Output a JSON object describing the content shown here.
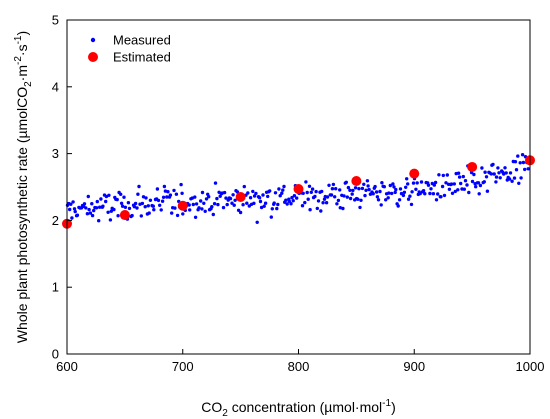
{
  "chart_data": {
    "type": "scatter",
    "xlim": [
      600,
      1000
    ],
    "ylim": [
      0,
      5
    ],
    "x_ticks": [
      "600",
      "700",
      "800",
      "900",
      "1000"
    ],
    "y_ticks": [
      "0",
      "1",
      "2",
      "3",
      "4",
      "5"
    ],
    "xlabel": {
      "prefix": "CO",
      "sub": "2",
      "middle": " concentration (µmol·mol",
      "sup": "-1",
      "suffix": ")"
    },
    "ylabel": {
      "prefix": "Whole plant photosynthetic rate (µmolCO",
      "sub": "2",
      "middle1": "·m",
      "sup1": "-2",
      "middle2": "·s",
      "sup2": "-1",
      "suffix": ")"
    },
    "legend_position": "top-left",
    "grid": false,
    "series": [
      {
        "name": "Measured",
        "color": "#0000ff",
        "marker": "small-dot",
        "x_range": [
          600,
          1000
        ],
        "count": 400,
        "trend": [
          [
            600,
            2.15
          ],
          [
            650,
            2.22
          ],
          [
            700,
            2.28
          ],
          [
            750,
            2.32
          ],
          [
            800,
            2.35
          ],
          [
            850,
            2.4
          ],
          [
            900,
            2.45
          ],
          [
            950,
            2.55
          ],
          [
            1000,
            2.8
          ]
        ],
        "spread": 0.22
      },
      {
        "name": "Estimated",
        "color": "#ff0000",
        "marker": "large-dot",
        "x": [
          600,
          650,
          700,
          750,
          800,
          850,
          900,
          950,
          1000
        ],
        "y": [
          1.95,
          2.08,
          2.22,
          2.35,
          2.47,
          2.59,
          2.7,
          2.8,
          2.9
        ]
      }
    ]
  }
}
